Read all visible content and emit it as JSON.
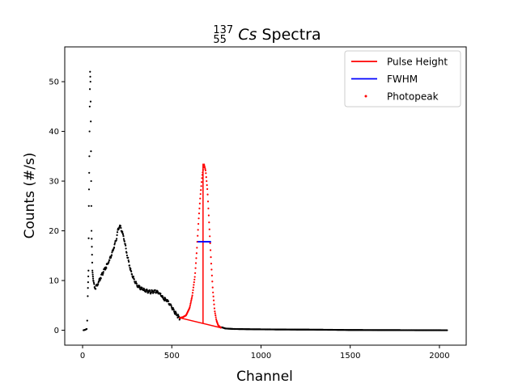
{
  "chart_data": {
    "type": "scatter",
    "title": {
      "isotope_mass": "137",
      "isotope_atomic": "55",
      "isotope_symbol": "Cs",
      "text": " Spectra"
    },
    "xlabel": "Channel",
    "ylabel": "Counts (#/s)",
    "xlim": [
      -100,
      2150
    ],
    "ylim": [
      -3,
      57
    ],
    "xticks": [
      0,
      500,
      1000,
      1500,
      2000
    ],
    "yticks": [
      0,
      10,
      20,
      30,
      40,
      50
    ],
    "grid": false,
    "legend_position": "upper right",
    "colors": {
      "spectrum": "#000000",
      "photopeak": "#ff0000",
      "pulse_height": "#ff0000",
      "fwhm": "#0000ff"
    },
    "legend": [
      {
        "label": "Pulse Height",
        "kind": "line",
        "color": "#ff0000"
      },
      {
        "label": "FWHM",
        "kind": "line",
        "color": "#0000ff"
      },
      {
        "label": "Photopeak",
        "kind": "point",
        "color": "#ff0000"
      }
    ],
    "spectrum_keypoints": [
      [
        5,
        0
      ],
      [
        15,
        0.1
      ],
      [
        25,
        0.3
      ],
      [
        30,
        8.5
      ],
      [
        33,
        12
      ],
      [
        35,
        25
      ],
      [
        38,
        35
      ],
      [
        40,
        45
      ],
      [
        42,
        52
      ],
      [
        44,
        50
      ],
      [
        46,
        42
      ],
      [
        48,
        30
      ],
      [
        50,
        20
      ],
      [
        55,
        12
      ],
      [
        60,
        10
      ],
      [
        70,
        8.5
      ],
      [
        80,
        9
      ],
      [
        100,
        10.5
      ],
      [
        120,
        12
      ],
      [
        150,
        14
      ],
      [
        170,
        16
      ],
      [
        190,
        18.5
      ],
      [
        200,
        20.5
      ],
      [
        210,
        21
      ],
      [
        220,
        20
      ],
      [
        235,
        18
      ],
      [
        250,
        15
      ],
      [
        270,
        12
      ],
      [
        290,
        10
      ],
      [
        310,
        8.8
      ],
      [
        330,
        8.3
      ],
      [
        350,
        8
      ],
      [
        380,
        7.7
      ],
      [
        410,
        7.8
      ],
      [
        430,
        7.5
      ],
      [
        450,
        6.5
      ],
      [
        470,
        6
      ],
      [
        490,
        5.2
      ],
      [
        510,
        4
      ],
      [
        530,
        3
      ],
      [
        545,
        2.4
      ],
      [
        560,
        2.5
      ],
      [
        780,
        0.6
      ],
      [
        800,
        0.35
      ],
      [
        850,
        0.25
      ],
      [
        950,
        0.2
      ],
      [
        1100,
        0.15
      ],
      [
        1300,
        0.12
      ],
      [
        1500,
        0.05
      ],
      [
        1700,
        0.03
      ],
      [
        1900,
        0.01
      ],
      [
        2045,
        0
      ]
    ],
    "photopeak_keypoints": [
      [
        545,
        2.5
      ],
      [
        560,
        2.6
      ],
      [
        580,
        3
      ],
      [
        600,
        4.5
      ],
      [
        615,
        7
      ],
      [
        630,
        11
      ],
      [
        640,
        16
      ],
      [
        650,
        22
      ],
      [
        660,
        27
      ],
      [
        670,
        31
      ],
      [
        680,
        33.5
      ],
      [
        690,
        32
      ],
      [
        700,
        28
      ],
      [
        710,
        21
      ],
      [
        720,
        14
      ],
      [
        730,
        8
      ],
      [
        740,
        4
      ],
      [
        750,
        2
      ],
      [
        760,
        1
      ],
      [
        775,
        0.5
      ]
    ],
    "pulse_height": {
      "baseline": [
        [
          545,
          2.5
        ],
        [
          775,
          0.5
        ]
      ],
      "peak": [
        [
          675,
          33.5
        ],
        [
          675,
          1.4
        ]
      ]
    },
    "fwhm": {
      "x": [
        645,
        720
      ],
      "y": 17.8
    }
  }
}
